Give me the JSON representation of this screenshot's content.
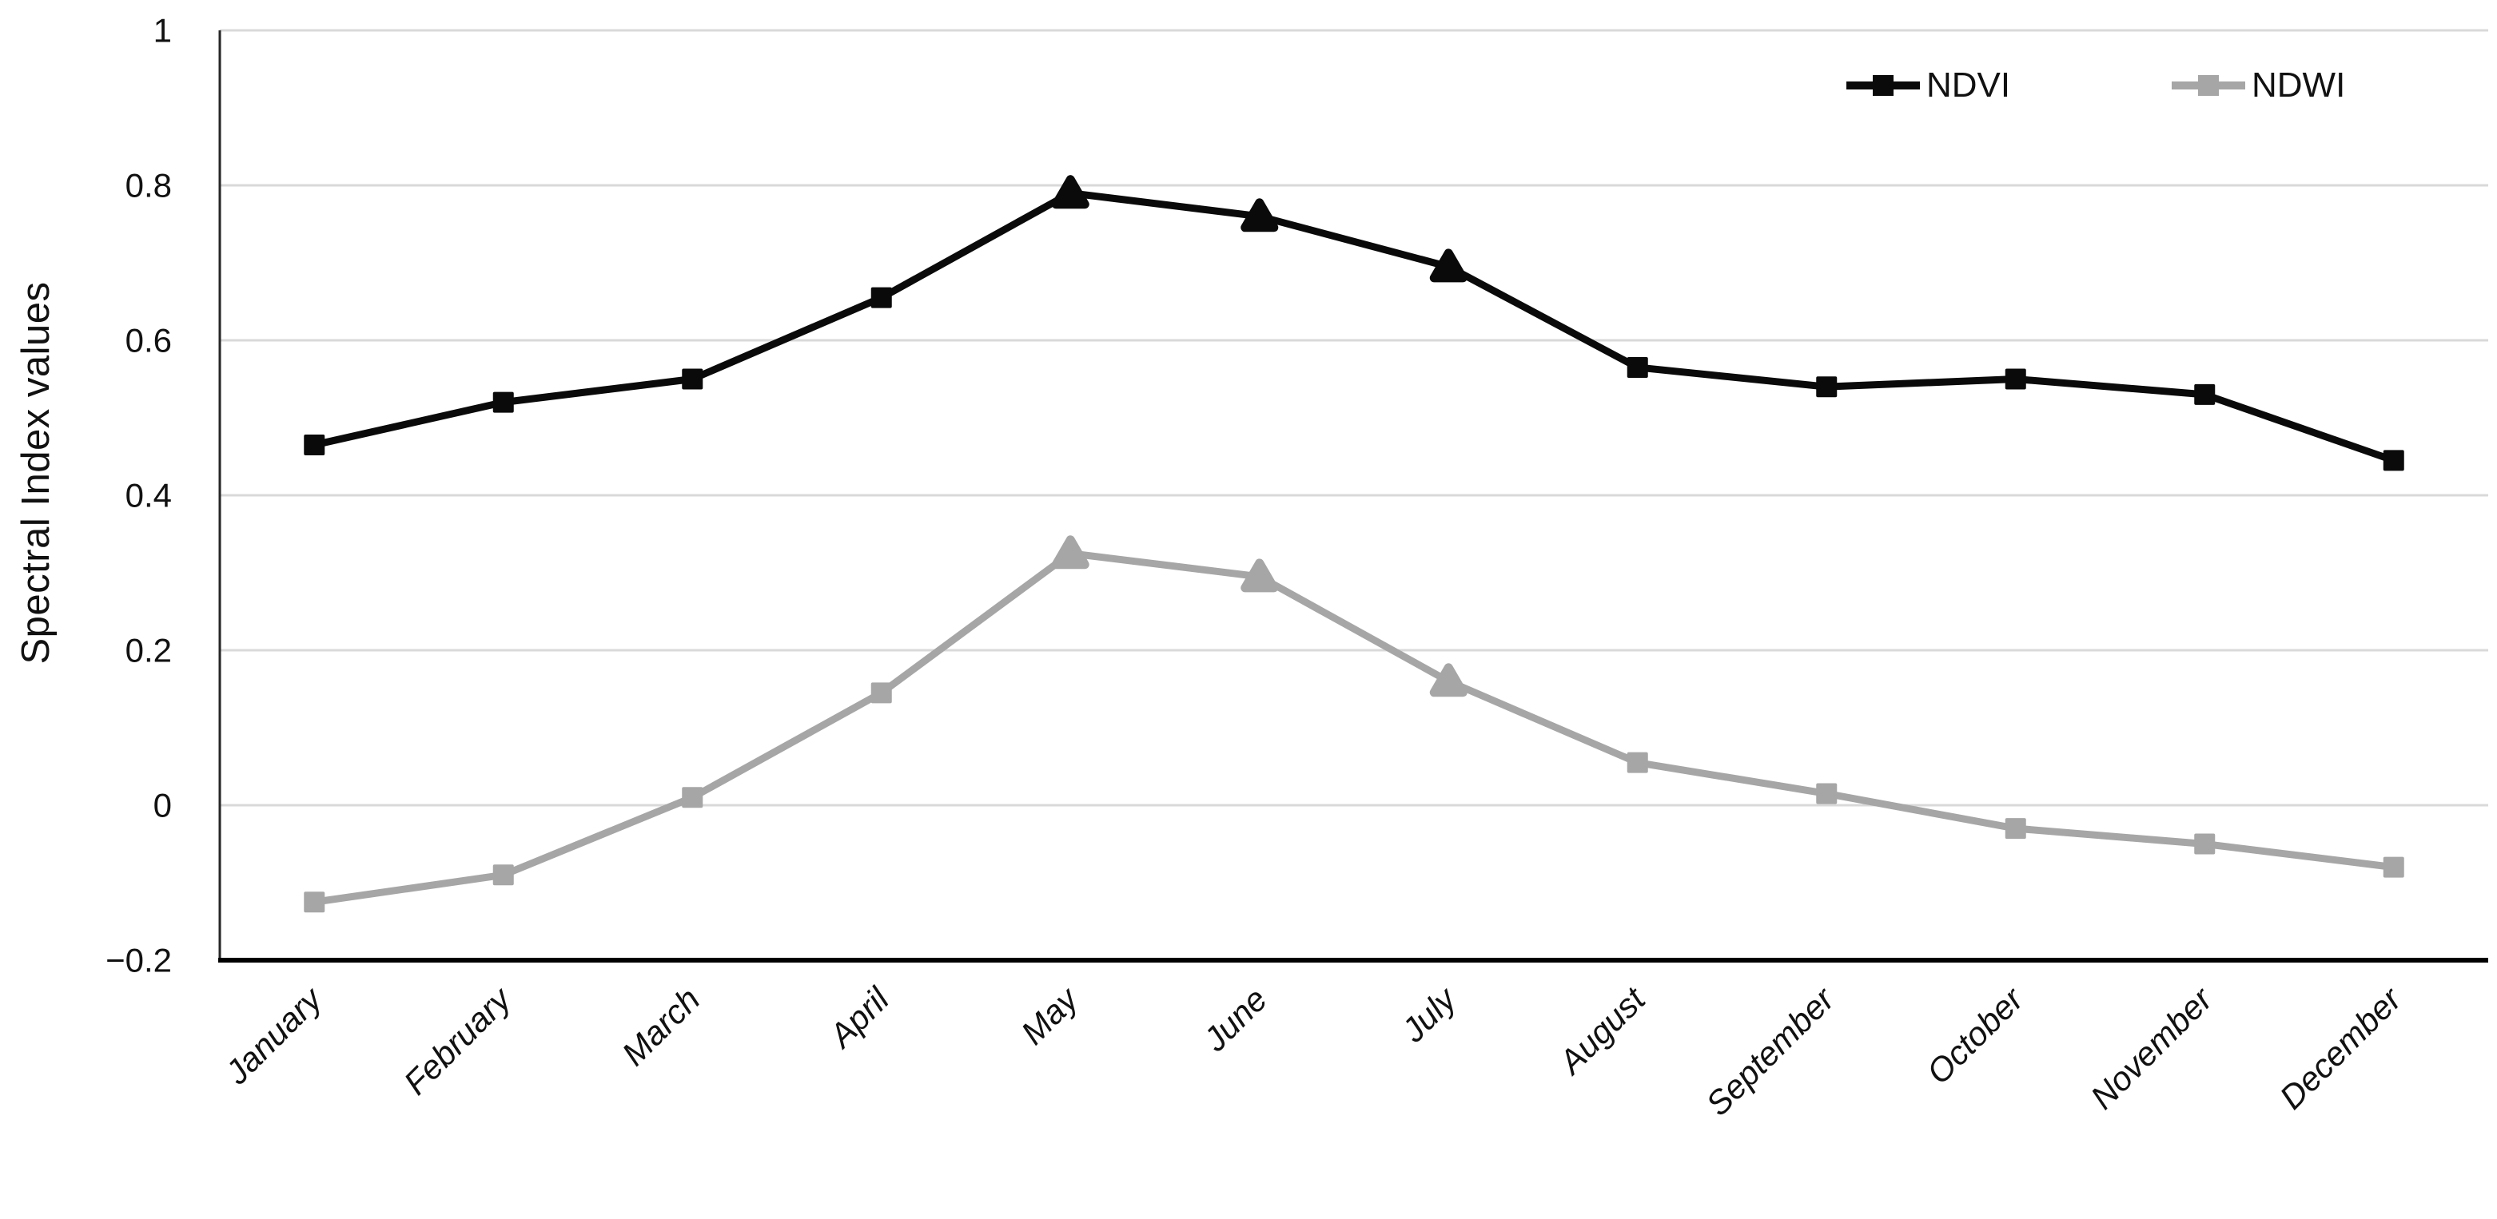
{
  "chart_data": {
    "type": "line",
    "title": "",
    "xlabel": "",
    "ylabel": "Spectral Index values",
    "categories": [
      "January",
      "February",
      "March",
      "April",
      "May",
      "June",
      "July",
      "August",
      "September",
      "October",
      "November",
      "December"
    ],
    "series": [
      {
        "name": "NDVI",
        "color": "#0a0a0a",
        "values": [
          0.465,
          0.52,
          0.55,
          0.655,
          0.79,
          0.76,
          0.695,
          0.565,
          0.54,
          0.55,
          0.53,
          0.445
        ],
        "marker_types": [
          "square",
          "square",
          "square",
          "square",
          "triangle",
          "triangle",
          "triangle",
          "square",
          "square",
          "square",
          "square",
          "square"
        ]
      },
      {
        "name": "NDWI",
        "color": "#a6a6a6",
        "values": [
          -0.125,
          -0.09,
          0.01,
          0.145,
          0.325,
          0.295,
          0.16,
          0.055,
          0.015,
          -0.03,
          -0.05,
          -0.08
        ],
        "marker_types": [
          "square",
          "square",
          "square",
          "square",
          "triangle",
          "triangle",
          "triangle",
          "square",
          "square",
          "square",
          "square",
          "square"
        ]
      }
    ],
    "ylim": [
      -0.2,
      1
    ],
    "yticks": [
      1,
      0.8,
      0.6,
      0.4,
      0.2,
      0,
      -0.2
    ],
    "ytick_labels": [
      "1",
      "0.8",
      "0.6",
      "0.4",
      "0.2",
      "0",
      "−0.2"
    ],
    "grid": true,
    "gridline_color": "#d9d9d9",
    "axis_color": "#262626",
    "x_axis_color": "#000000",
    "tick_label_color": "#111111",
    "legend_position": "top-right"
  }
}
